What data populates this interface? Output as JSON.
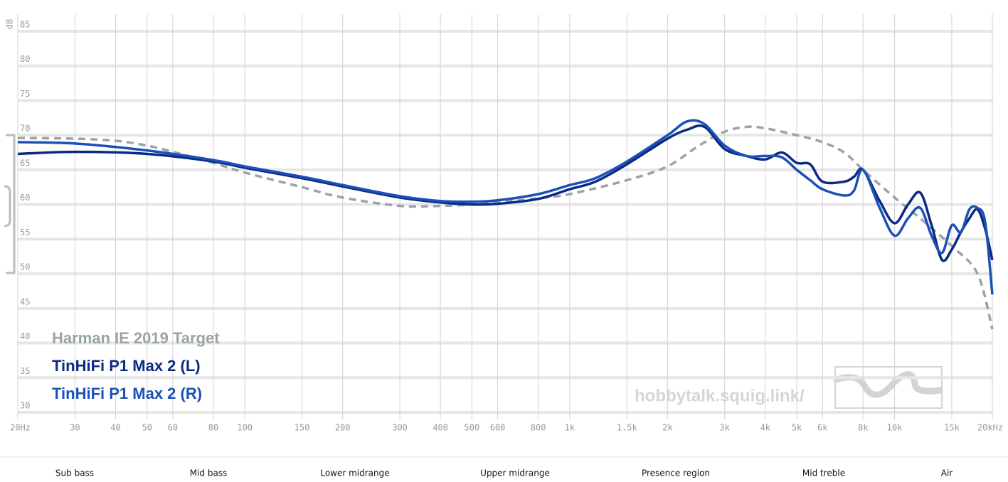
{
  "chart_data": {
    "type": "line",
    "y_label": "dB",
    "log_x": true,
    "grid": true,
    "xlim": [
      20,
      20000
    ],
    "ylim": [
      30,
      85
    ],
    "xticks": [
      {
        "value": 20,
        "label": "20Hz"
      },
      30,
      40,
      50,
      60,
      80,
      100,
      150,
      200,
      300,
      400,
      500,
      600,
      800,
      {
        "value": 1000,
        "label": "1k"
      },
      {
        "value": 1500,
        "label": "1.5k"
      },
      {
        "value": 2000,
        "label": "2k"
      },
      {
        "value": 3000,
        "label": "3k"
      },
      {
        "value": 4000,
        "label": "4k"
      },
      {
        "value": 5000,
        "label": "5k"
      },
      {
        "value": 6000,
        "label": "6k"
      },
      {
        "value": 8000,
        "label": "8k"
      },
      {
        "value": 10000,
        "label": "10k"
      },
      {
        "value": 15000,
        "label": "15k"
      },
      {
        "value": 20000,
        "label": "20kHz"
      }
    ],
    "yticks": [
      30,
      35,
      40,
      45,
      50,
      55,
      60,
      65,
      70,
      75,
      80,
      85
    ],
    "series": [
      {
        "name": "Harman IE 2019 Target",
        "color": "#9aa3a6",
        "dashed": true,
        "x": [
          20,
          30,
          40,
          50,
          60,
          80,
          100,
          150,
          200,
          300,
          400,
          500,
          600,
          800,
          1000,
          1500,
          2000,
          2500,
          3000,
          3500,
          4000,
          5000,
          6000,
          7000,
          8000,
          10000,
          12000,
          15000,
          18000,
          20000
        ],
        "values": [
          69.6,
          69.5,
          69.2,
          68.5,
          67.6,
          66,
          64.6,
          62.5,
          61,
          59.8,
          59.8,
          60,
          60.3,
          60.9,
          61.5,
          63.5,
          65.5,
          68.5,
          70.5,
          71.2,
          71,
          70,
          69,
          67.5,
          65,
          61,
          58,
          54,
          50,
          42
        ]
      },
      {
        "name": "TinHiFi P1 Max 2 (L)",
        "color": "#0b2a82",
        "x": [
          20,
          30,
          50,
          80,
          100,
          150,
          200,
          300,
          400,
          500,
          600,
          800,
          1000,
          1200,
          1500,
          2000,
          2300,
          2600,
          3000,
          3500,
          4000,
          4500,
          5000,
          5500,
          6000,
          7000,
          7500,
          8000,
          9000,
          10000,
          11000,
          12000,
          13000,
          14000,
          15000,
          16000,
          17000,
          18000,
          19000,
          20000
        ],
        "values": [
          67.3,
          67.6,
          67.3,
          66.2,
          65.3,
          63.8,
          62.6,
          61,
          60.3,
          60,
          60.1,
          60.8,
          62.2,
          63.3,
          65.8,
          69.5,
          70.8,
          71.2,
          68,
          67,
          66.5,
          67.5,
          66,
          65.8,
          63.3,
          63.3,
          64,
          65,
          60.5,
          57.3,
          60,
          61.7,
          57,
          52,
          53.5,
          56,
          58,
          59.3,
          56.5,
          52
        ]
      },
      {
        "name": "TinHiFi P1 Max 2 (R)",
        "color": "#1a50b8",
        "x": [
          20,
          30,
          50,
          80,
          100,
          150,
          200,
          300,
          400,
          500,
          600,
          800,
          1000,
          1200,
          1500,
          2000,
          2300,
          2600,
          3000,
          3500,
          4000,
          4500,
          5000,
          5500,
          6000,
          7000,
          7500,
          8000,
          9000,
          10000,
          11000,
          12000,
          13000,
          14000,
          15000,
          16000,
          17000,
          18000,
          19000,
          20000
        ],
        "values": [
          69,
          68.8,
          67.8,
          66.4,
          65.5,
          64,
          62.8,
          61.2,
          60.5,
          60.4,
          60.6,
          61.5,
          62.8,
          63.8,
          66.2,
          70,
          72,
          71.6,
          68.5,
          67,
          67,
          66.8,
          65,
          63.5,
          62.2,
          61.3,
          62,
          65,
          59.5,
          55.5,
          58,
          59.5,
          55.5,
          53,
          57,
          56,
          59.3,
          59.5,
          57.5,
          47
        ]
      }
    ],
    "watermark": "hobbytalk.squig.link/",
    "bands": [
      "Sub bass",
      "Mid bass",
      "Lower midrange",
      "Upper midrange",
      "Presence region",
      "Mid treble",
      "Air"
    ]
  }
}
